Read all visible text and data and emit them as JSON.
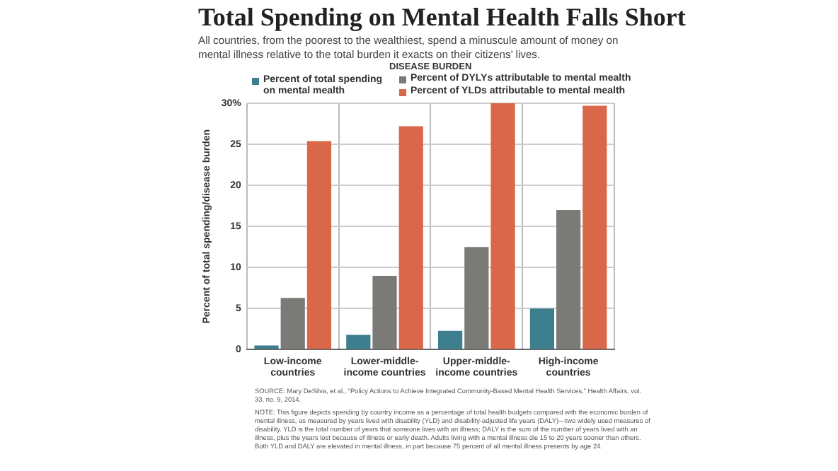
{
  "chart_data": {
    "type": "bar",
    "title": "Total Spending on Mental Health Falls Short",
    "subtitle": "All countries, from the poorest to the wealthiest, spend a minuscule amount of money on mental illness relative to the total burden it exacts on their citizens’ lives.",
    "ylabel": "Percent of total spending/disease burden",
    "legend_title": "DISEASE BURDEN",
    "categories": [
      "Low-income countries",
      "Lower-middle-income countries",
      "Upper-middle-income countries",
      "High-income countries"
    ],
    "series": [
      {
        "name": "Percent of total spending on mental mealth",
        "color": "#3e7f8f",
        "values": [
          0.5,
          1.8,
          2.3,
          5.0
        ]
      },
      {
        "name": "Percent of DYLYs attributable to mental mealth",
        "color": "#7a7a77",
        "values": [
          6.3,
          9.0,
          12.5,
          17.0
        ]
      },
      {
        "name": "Percent of YLDs attributable to mental mealth",
        "color": "#d9674a",
        "values": [
          25.4,
          27.2,
          30,
          29.7
        ]
      }
    ],
    "ylim": [
      0,
      30
    ],
    "yticks": [
      0,
      5,
      10,
      15,
      20,
      25,
      {
        "value": 30,
        "label": "30%"
      }
    ],
    "grid": true,
    "legend": "top",
    "annotations": [
      "SOURCE: Mary DeSilva, et al., “Policy Actions to Achieve Integrated Community-Based Mental Health Services,” Health Affairs, vol. 33, no. 9, 2014.",
      "NOTE: This figure depicts spending by country income as a percentage of total health budgets compared with the economic burden of mental illness, as measured by years lived with disability (YLD) and disability-adjusted life years (DALY)—two widely used measures of disability. YLD is the total number of years that someone lives with an illness; DALY is the sum of the number of years lived with an illness, plus the years lost because of illness or early death. Adults living with a mental illness die 15 to 20 years sooner than others. Both YLD and DALY are elevated in mental illness, in part because 75 percent of all mental illness presents by age 24."
    ]
  }
}
